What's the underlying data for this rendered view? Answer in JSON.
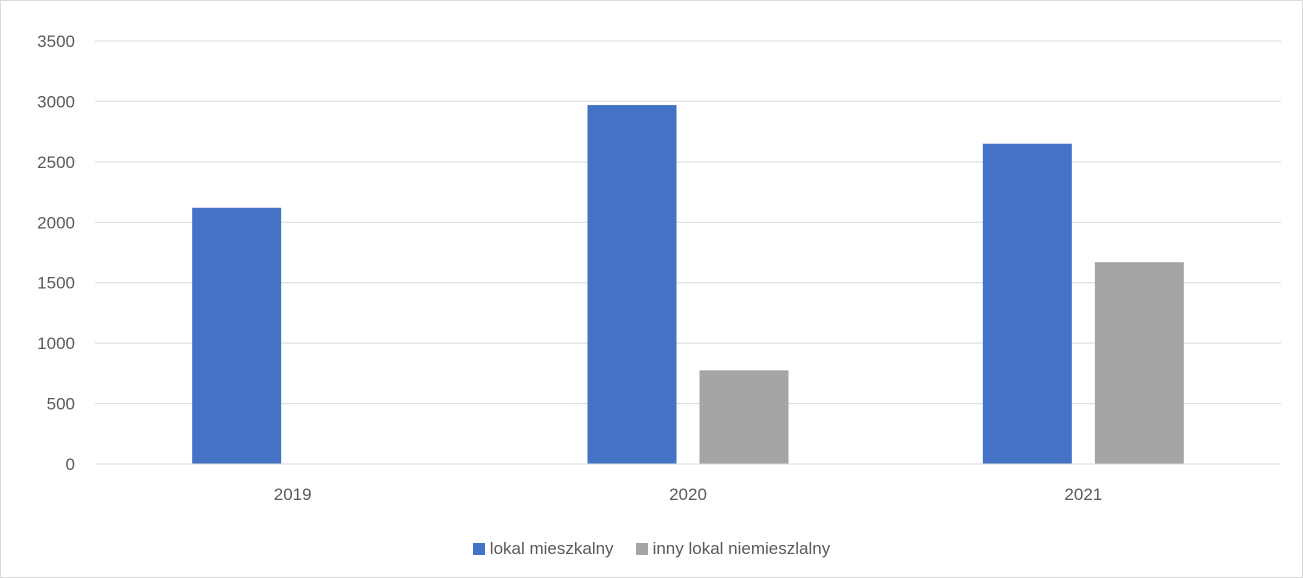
{
  "chart_data": {
    "type": "bar",
    "title": "",
    "xlabel": "",
    "ylabel": "",
    "categories": [
      "2019",
      "2020",
      "2021"
    ],
    "series": [
      {
        "name": "lokal mieszkalny",
        "color": "#4472C4",
        "values": [
          2120,
          2970,
          2650
        ]
      },
      {
        "name": "inny lokal niemieszlalny",
        "color": "#A5A5A5",
        "values": [
          0,
          775,
          1670
        ]
      }
    ],
    "ylim": [
      0,
      3500
    ],
    "yticks": [
      0,
      500,
      1000,
      1500,
      2000,
      2500,
      3000,
      3500
    ],
    "grid": true,
    "legend_position": "bottom"
  }
}
